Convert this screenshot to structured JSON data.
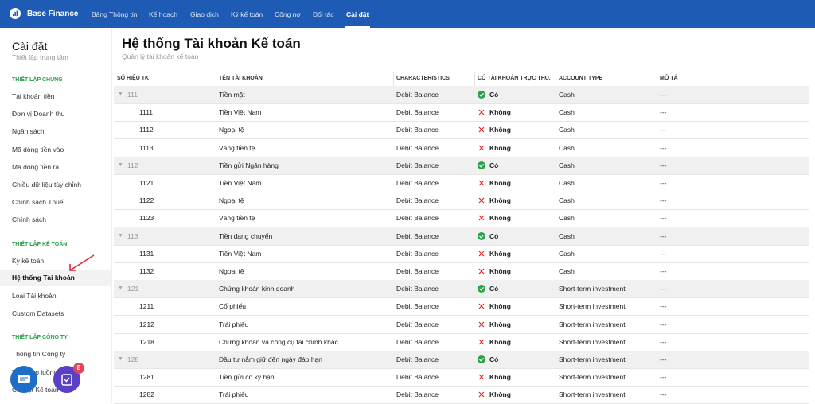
{
  "topbar": {
    "brand": "Base Finance",
    "active": 6,
    "nav": [
      "Bảng Thông tin",
      "Kế hoạch",
      "Giao dịch",
      "Ký kế toán",
      "Công nợ",
      "Đối tác",
      "Cài đặt"
    ]
  },
  "sidebar": {
    "title": "Cài đặt",
    "subtitle": "Thiết lập trung tâm",
    "active": [
      1,
      1
    ],
    "sections": [
      {
        "heading": "THIẾT LẬP CHUNG",
        "items": [
          "Tài khoản tiền",
          "Đơn vị Doanh thu",
          "Ngân sách",
          "Mã dòng tiền vào",
          "Mã dòng tiền ra",
          "Chiều dữ liệu tùy chỉnh",
          "Chính sách Thuế",
          "Chính sách"
        ]
      },
      {
        "heading": "THIẾT LẬP KẾ TOÁN",
        "items": [
          "Kỳ kế toán",
          "Hệ thống Tài khoản",
          "Loại Tài khoản",
          "Custom Datasets"
        ]
      },
      {
        "heading": "THIẾT LẬP CÔNG TY",
        "items": [
          "Thông tin Công ty",
          "Tích hợp luồng",
          "Cài đặt Kế toán"
        ]
      }
    ]
  },
  "badge": "8",
  "header": {
    "title": "Hệ thống Tài khoản Kế toán",
    "subtitle": "Quản lý tài khoản kế toán"
  },
  "table": {
    "columns": [
      "SỐ HIỆU TK",
      "TÊN TÀI KHOẢN",
      "CHARACTERISTICS",
      "CÓ TÀI KHOẢN TRỰC THU...",
      "ACCOUNT TYPE",
      "MÔ TẢ"
    ],
    "groups": [
      {
        "row": [
          "111",
          "Tiền mặt",
          "Debit Balance",
          "Có",
          "Cash",
          "---"
        ],
        "checked": true,
        "children": [
          {
            "row": [
              "1111",
              "Tiền Việt Nam",
              "Debit Balance",
              "Không",
              "Cash",
              "---"
            ],
            "checked": false
          },
          {
            "row": [
              "1112",
              "Ngoại tệ",
              "Debit Balance",
              "Không",
              "Cash",
              "---"
            ],
            "checked": false
          },
          {
            "row": [
              "1113",
              "Vàng tiền tệ",
              "Debit Balance",
              "Không",
              "Cash",
              "---"
            ],
            "checked": false
          }
        ]
      },
      {
        "row": [
          "112",
          "Tiền gửi Ngân hàng",
          "Debit Balance",
          "Có",
          "Cash",
          "---"
        ],
        "checked": true,
        "children": [
          {
            "row": [
              "1121",
              "Tiền Việt Nam",
              "Debit Balance",
              "Không",
              "Cash",
              "---"
            ],
            "checked": false
          },
          {
            "row": [
              "1122",
              "Ngoại tệ",
              "Debit Balance",
              "Không",
              "Cash",
              "---"
            ],
            "checked": false
          },
          {
            "row": [
              "1123",
              "Vàng tiền tệ",
              "Debit Balance",
              "Không",
              "Cash",
              "---"
            ],
            "checked": false
          }
        ]
      },
      {
        "row": [
          "113",
          "Tiền đang chuyển",
          "Debit Balance",
          "Có",
          "Cash",
          "---"
        ],
        "checked": true,
        "children": [
          {
            "row": [
              "1131",
              "Tiền Việt Nam",
              "Debit Balance",
              "Không",
              "Cash",
              "---"
            ],
            "checked": false
          },
          {
            "row": [
              "1132",
              "Ngoại tệ",
              "Debit Balance",
              "Không",
              "Cash",
              "---"
            ],
            "checked": false
          }
        ]
      },
      {
        "row": [
          "121",
          "Chứng khoán kinh doanh",
          "Debit Balance",
          "Có",
          "Short-term investment",
          "---"
        ],
        "checked": true,
        "children": [
          {
            "row": [
              "1211",
              "Cổ phiếu",
              "Debit Balance",
              "Không",
              "Short-term investment",
              "---"
            ],
            "checked": false
          },
          {
            "row": [
              "1212",
              "Trái phiếu",
              "Debit Balance",
              "Không",
              "Short-term investment",
              "---"
            ],
            "checked": false
          },
          {
            "row": [
              "1218",
              "Chứng khoán và công cụ tài chính khác",
              "Debit Balance",
              "Không",
              "Short-term investment",
              "---"
            ],
            "checked": false
          }
        ]
      },
      {
        "row": [
          "128",
          "Đầu tư nắm giữ đến ngày đáo hạn",
          "Debit Balance",
          "Có",
          "Short-term investment",
          "---"
        ],
        "checked": true,
        "children": [
          {
            "row": [
              "1281",
              "Tiền gửi có kỳ hạn",
              "Debit Balance",
              "Không",
              "Short-term investment",
              "---"
            ],
            "checked": false
          },
          {
            "row": [
              "1282",
              "Trái phiếu",
              "Debit Balance",
              "Không",
              "Short-term investment",
              "---"
            ],
            "checked": false
          }
        ]
      }
    ]
  }
}
